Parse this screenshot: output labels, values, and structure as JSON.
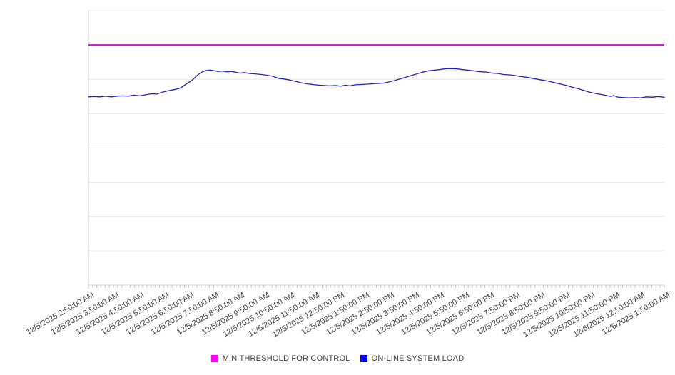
{
  "chart_data": {
    "type": "line",
    "title": "",
    "xlabel": "",
    "ylabel": "",
    "grid": "horizontal",
    "legend_position": "bottom-center",
    "ylim": [
      0,
      8
    ],
    "y_tick_labels": [],
    "x_axis": {
      "start_label": "12/5/2025 2:50:00 AM",
      "end_label": "12/6/2025 1:50:00 AM",
      "total_minutes": 1380,
      "minor_tick_interval_minutes": 10,
      "label_interval_minutes": 60
    },
    "x_tick_labels": [
      "12/5/2025 2:50:00 AM",
      "12/5/2025 3:50:00 AM",
      "12/5/2025 4:50:00 AM",
      "12/5/2025 5:50:00 AM",
      "12/5/2025 6:50:00 AM",
      "12/5/2025 7:50:00 AM",
      "12/5/2025 8:50:00 AM",
      "12/5/2025 9:50:00 AM",
      "12/5/2025 10:50:00 AM",
      "12/5/2025 11:50:00 AM",
      "12/5/2025 12:50:00 PM",
      "12/5/2025 1:50:00 PM",
      "12/5/2025 2:50:00 PM",
      "12/5/2025 3:50:00 PM",
      "12/5/2025 4:50:00 PM",
      "12/5/2025 5:50:00 PM",
      "12/5/2025 6:50:00 PM",
      "12/5/2025 7:50:00 PM",
      "12/5/2025 8:50:00 PM",
      "12/5/2025 9:50:00 PM",
      "12/5/2025 10:50:00 PM",
      "12/5/2025 11:50:00 PM",
      "12/6/2025 12:50:00 AM",
      "12/6/2025 1:50:00 AM"
    ],
    "series": [
      {
        "name": "MIN THRESHOLD FOR CONTROL",
        "type": "constant",
        "value": 7.0,
        "line_color": "#D110D1",
        "marker_color": "#FF00FF",
        "line_width": 2
      },
      {
        "name": "ON-LINE SYSTEM LOAD",
        "type": "line",
        "line_color": "#2222B2",
        "marker_color": "#0000EE",
        "line_width": 1.3,
        "points": [
          [
            0,
            5.49
          ],
          [
            14,
            5.5
          ],
          [
            27,
            5.49
          ],
          [
            41,
            5.51
          ],
          [
            55,
            5.49
          ],
          [
            68,
            5.51
          ],
          [
            82,
            5.52
          ],
          [
            96,
            5.51
          ],
          [
            109,
            5.54
          ],
          [
            123,
            5.52
          ],
          [
            137,
            5.55
          ],
          [
            150,
            5.58
          ],
          [
            164,
            5.57
          ],
          [
            178,
            5.63
          ],
          [
            192,
            5.67
          ],
          [
            205,
            5.7
          ],
          [
            219,
            5.74
          ],
          [
            229,
            5.82
          ],
          [
            239,
            5.9
          ],
          [
            250,
            5.99
          ],
          [
            260,
            6.11
          ],
          [
            270,
            6.2
          ],
          [
            280,
            6.25
          ],
          [
            291,
            6.27
          ],
          [
            301,
            6.25
          ],
          [
            311,
            6.23
          ],
          [
            321,
            6.24
          ],
          [
            332,
            6.22
          ],
          [
            342,
            6.23
          ],
          [
            352,
            6.21
          ],
          [
            363,
            6.18
          ],
          [
            373,
            6.2
          ],
          [
            386,
            6.17
          ],
          [
            400,
            6.16
          ],
          [
            414,
            6.14
          ],
          [
            428,
            6.12
          ],
          [
            441,
            6.09
          ],
          [
            455,
            6.03
          ],
          [
            469,
            6.01
          ],
          [
            482,
            5.98
          ],
          [
            496,
            5.94
          ],
          [
            510,
            5.9
          ],
          [
            523,
            5.87
          ],
          [
            537,
            5.85
          ],
          [
            551,
            5.83
          ],
          [
            564,
            5.82
          ],
          [
            578,
            5.81
          ],
          [
            592,
            5.82
          ],
          [
            605,
            5.8
          ],
          [
            616,
            5.83
          ],
          [
            626,
            5.81
          ],
          [
            640,
            5.84
          ],
          [
            653,
            5.85
          ],
          [
            667,
            5.86
          ],
          [
            681,
            5.87
          ],
          [
            694,
            5.88
          ],
          [
            708,
            5.89
          ],
          [
            722,
            5.93
          ],
          [
            735,
            5.97
          ],
          [
            749,
            6.02
          ],
          [
            763,
            6.07
          ],
          [
            776,
            6.12
          ],
          [
            790,
            6.17
          ],
          [
            804,
            6.22
          ],
          [
            817,
            6.25
          ],
          [
            831,
            6.27
          ],
          [
            845,
            6.29
          ],
          [
            858,
            6.31
          ],
          [
            872,
            6.31
          ],
          [
            886,
            6.3
          ],
          [
            899,
            6.28
          ],
          [
            913,
            6.26
          ],
          [
            927,
            6.24
          ],
          [
            940,
            6.22
          ],
          [
            954,
            6.21
          ],
          [
            968,
            6.18
          ],
          [
            982,
            6.17
          ],
          [
            995,
            6.14
          ],
          [
            1009,
            6.13
          ],
          [
            1023,
            6.11
          ],
          [
            1036,
            6.08
          ],
          [
            1050,
            6.06
          ],
          [
            1064,
            6.03
          ],
          [
            1077,
            6.0
          ],
          [
            1091,
            5.97
          ],
          [
            1105,
            5.94
          ],
          [
            1118,
            5.9
          ],
          [
            1132,
            5.86
          ],
          [
            1146,
            5.82
          ],
          [
            1159,
            5.77
          ],
          [
            1173,
            5.73
          ],
          [
            1187,
            5.68
          ],
          [
            1200,
            5.63
          ],
          [
            1214,
            5.59
          ],
          [
            1228,
            5.56
          ],
          [
            1241,
            5.53
          ],
          [
            1252,
            5.5
          ],
          [
            1259,
            5.53
          ],
          [
            1269,
            5.48
          ],
          [
            1283,
            5.47
          ],
          [
            1296,
            5.46
          ],
          [
            1310,
            5.47
          ],
          [
            1324,
            5.46
          ],
          [
            1337,
            5.49
          ],
          [
            1351,
            5.48
          ],
          [
            1365,
            5.5
          ],
          [
            1380,
            5.48
          ]
        ]
      }
    ],
    "colors": {
      "gridline": "#e8e8e8",
      "axis": "#d0d0d0",
      "tick": "#c6c6c6",
      "label_text": "#3f3f3f"
    }
  },
  "legend": {
    "items": [
      {
        "label": "MIN THRESHOLD FOR CONTROL",
        "color": "#FF00FF"
      },
      {
        "label": "ON-LINE SYSTEM LOAD",
        "color": "#0000EE"
      }
    ]
  }
}
